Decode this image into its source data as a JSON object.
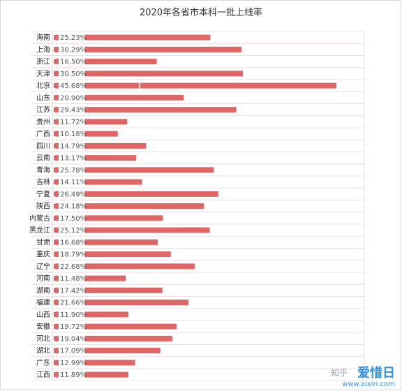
{
  "chart_data": {
    "type": "bar",
    "orientation": "horizontal",
    "title": "2020年各省市本科一批上线率",
    "categories": [
      "海南",
      "上海",
      "浙江",
      "天津",
      "北京",
      "山东",
      "江苏",
      "贵州",
      "广西",
      "四川",
      "云南",
      "青海",
      "吉林",
      "宁夏",
      "陕西",
      "内蒙古",
      "黑龙江",
      "甘肃",
      "重庆",
      "辽宁",
      "河南",
      "湖南",
      "福建",
      "山西",
      "安徽",
      "河北",
      "湖北",
      "广东",
      "江西"
    ],
    "value_labels": [
      "25.23%",
      "30.29%",
      "16.50%",
      "30.50%",
      "45.68%",
      "20.90%",
      "29.43%",
      "11.72%",
      "10.18%",
      "14.79%",
      "13.17%",
      "25.78%",
      "14.11%",
      "26.49%",
      "24.18%",
      "17.50%",
      "25.12%",
      "16.68%",
      "18.79%",
      "22.68%",
      "11.48%",
      "17.42%",
      "21.66%",
      "11.90%",
      "19.72%",
      "19.04%",
      "17.09%",
      "12.99%",
      "11.89%"
    ],
    "values": [
      25.23,
      30.29,
      16.5,
      30.5,
      45.68,
      20.9,
      29.43,
      11.72,
      10.18,
      14.79,
      13.17,
      25.78,
      14.11,
      26.49,
      24.18,
      17.5,
      25.12,
      16.68,
      18.79,
      22.68,
      11.48,
      17.42,
      21.66,
      11.9,
      19.72,
      19.04,
      17.09,
      12.99,
      11.89
    ],
    "xlim": [
      0,
      46
    ],
    "bar_color": "#e06666",
    "grid": true
  },
  "watermark": {
    "zhihu": "知乎",
    "brand": "爱惜日",
    "url": "www.aixiri.com"
  }
}
